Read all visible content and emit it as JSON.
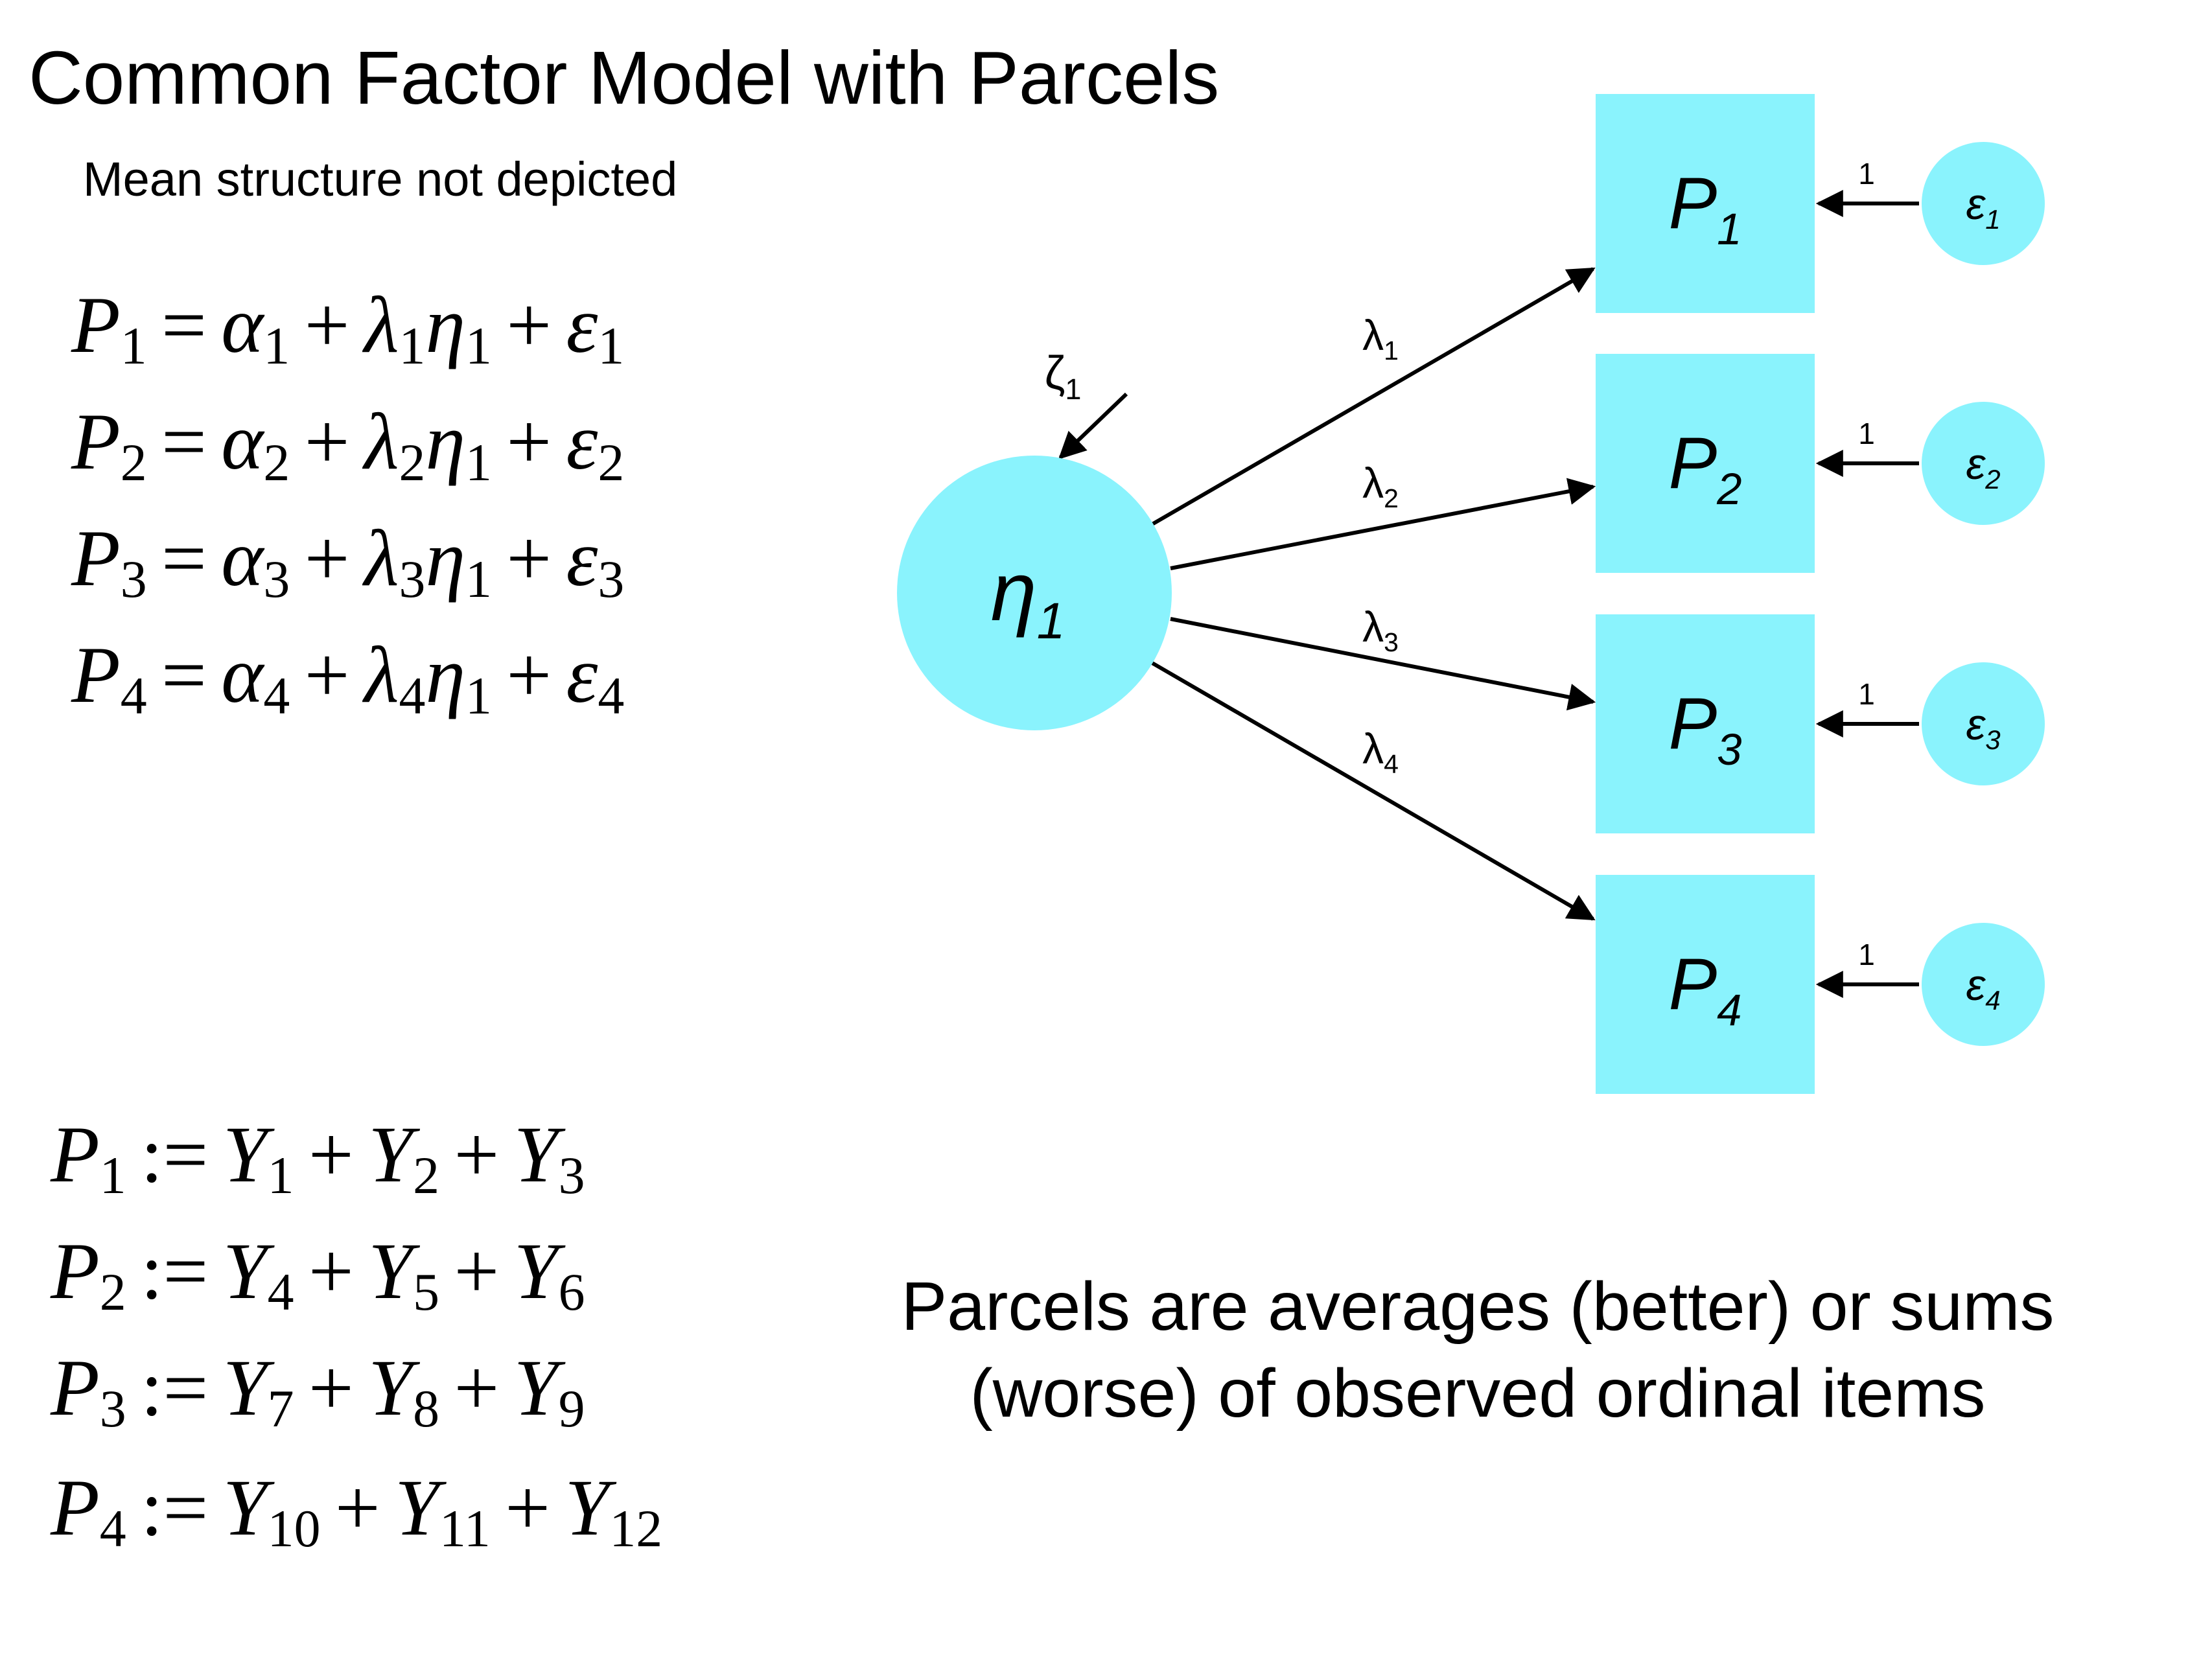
{
  "title": "Common Factor Model with Parcels",
  "subtitle": "Mean structure not depicted",
  "measurement_equations": [
    {
      "lhs": "P",
      "lhs_sub": "1",
      "alpha_sub": "1",
      "lambda_sub": "1",
      "eta_sub": "1",
      "eps_sub": "1"
    },
    {
      "lhs": "P",
      "lhs_sub": "2",
      "alpha_sub": "2",
      "lambda_sub": "2",
      "eta_sub": "1",
      "eps_sub": "2"
    },
    {
      "lhs": "P",
      "lhs_sub": "3",
      "alpha_sub": "3",
      "lambda_sub": "3",
      "eta_sub": "1",
      "eps_sub": "3"
    },
    {
      "lhs": "P",
      "lhs_sub": "4",
      "alpha_sub": "4",
      "lambda_sub": "4",
      "eta_sub": "1",
      "eps_sub": "4"
    }
  ],
  "parcel_definitions": [
    {
      "lhs_sub": "1",
      "items": [
        "1",
        "2",
        "3"
      ]
    },
    {
      "lhs_sub": "2",
      "items": [
        "4",
        "5",
        "6"
      ]
    },
    {
      "lhs_sub": "3",
      "items": [
        "7",
        "8",
        "9"
      ]
    },
    {
      "lhs_sub": "4",
      "items": [
        "10",
        "11",
        "12"
      ]
    }
  ],
  "symbols": {
    "equals": "=",
    "assign": ":=",
    "plus": "+",
    "alpha": "α",
    "lambda": "λ",
    "eta": "η",
    "epsilon": "ε",
    "item": "Y"
  },
  "diagram": {
    "fill_color": "#8af3fd",
    "latent": {
      "symbol": "η",
      "sub": "1"
    },
    "disturbance": {
      "symbol": "ζ",
      "sub": "1"
    },
    "indicators": [
      {
        "symbol": "P",
        "sub": "1",
        "loading": "λ",
        "loading_sub": "1",
        "error": "ε",
        "error_sub": "1",
        "error_path": "1"
      },
      {
        "symbol": "P",
        "sub": "2",
        "loading": "λ",
        "loading_sub": "2",
        "error": "ε",
        "error_sub": "2",
        "error_path": "1"
      },
      {
        "symbol": "P",
        "sub": "3",
        "loading": "λ",
        "loading_sub": "3",
        "error": "ε",
        "error_sub": "3",
        "error_path": "1"
      },
      {
        "symbol": "P",
        "sub": "4",
        "loading": "λ",
        "loading_sub": "4",
        "error": "ε",
        "error_sub": "4",
        "error_path": "1"
      }
    ]
  },
  "note": "Parcels are averages (better) or sums (worse) of observed ordinal items"
}
